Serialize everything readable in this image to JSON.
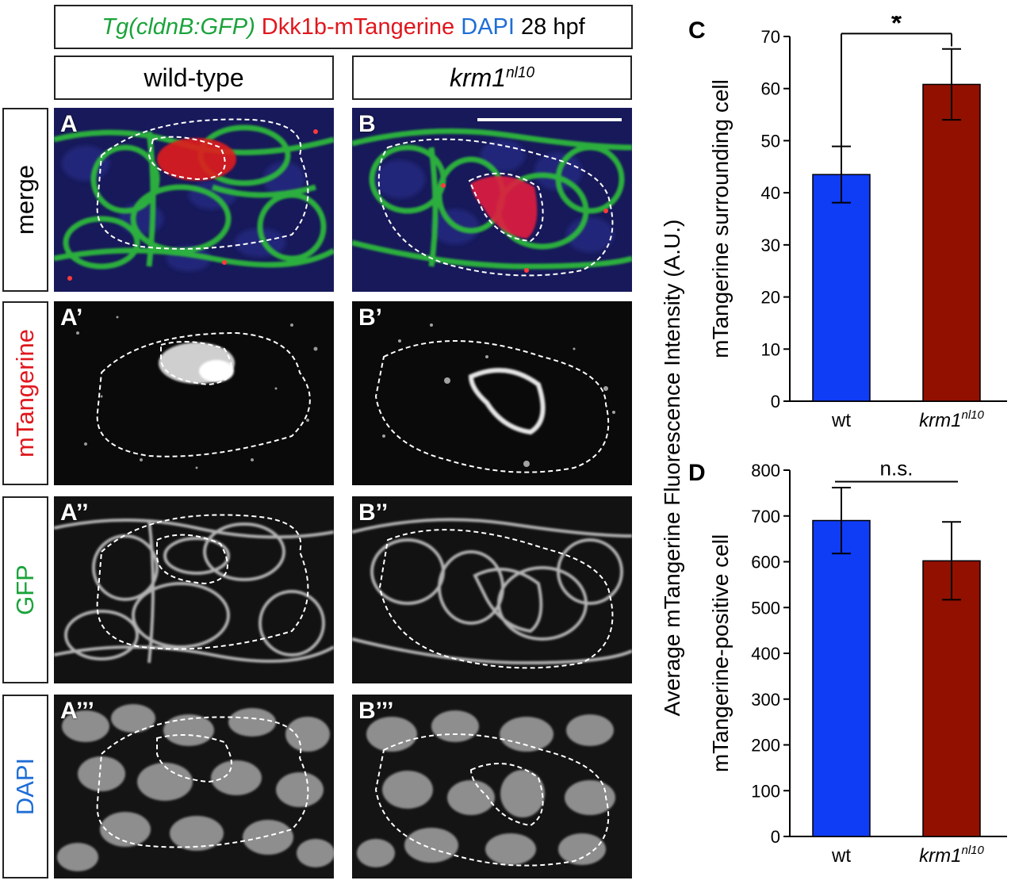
{
  "header": {
    "part1": "Tg(cldnB:GFP)",
    "part2": "Dkk1b-mTangerine",
    "part3": "DAPI",
    "part4": "28 hpf",
    "colors": {
      "green": "#1aa33a",
      "red": "#e0171d",
      "blue": "#1e6ed6",
      "black": "#000000"
    }
  },
  "columns": {
    "wildtype": "wild-type",
    "mutant_base": "krm1",
    "mutant_sup": "nl10"
  },
  "rows": {
    "merge": "merge",
    "mtangerine": "mTangerine",
    "gfp": "GFP",
    "dapi": "DAPI"
  },
  "panels": {
    "A": "A",
    "B": "B",
    "A1": "A’",
    "B1": "B’",
    "A2": "A’’",
    "B2": "B’’",
    "A3": "A’’’",
    "B3": "B’’’"
  },
  "shared_ylabel": "Average mTangerine Fluorescence Intensity (A.U.)",
  "chart_data": [
    {
      "letter": "C",
      "type": "bar",
      "categories": [
        "wt",
        "krm1"
      ],
      "category_sup": [
        "",
        "nl10"
      ],
      "values": [
        43.5,
        60.8
      ],
      "errors": [
        5.4,
        6.8
      ],
      "colors": [
        "#0f3cf5",
        "#921000"
      ],
      "ylabel": "mTangerine surrounding cell",
      "ylim": [
        0,
        70
      ],
      "yticks": [
        0,
        10,
        20,
        30,
        40,
        50,
        60,
        70
      ],
      "significance": "*"
    },
    {
      "letter": "D",
      "type": "bar",
      "categories": [
        "wt",
        "krm1"
      ],
      "category_sup": [
        "",
        "nl10"
      ],
      "values": [
        690,
        602
      ],
      "errors": [
        72,
        85
      ],
      "colors": [
        "#0f3cf5",
        "#921000"
      ],
      "ylabel": "mTangerine-positive cell",
      "ylim": [
        0,
        800
      ],
      "yticks": [
        0,
        100,
        200,
        300,
        400,
        500,
        600,
        700,
        800
      ],
      "significance": "n.s."
    }
  ]
}
